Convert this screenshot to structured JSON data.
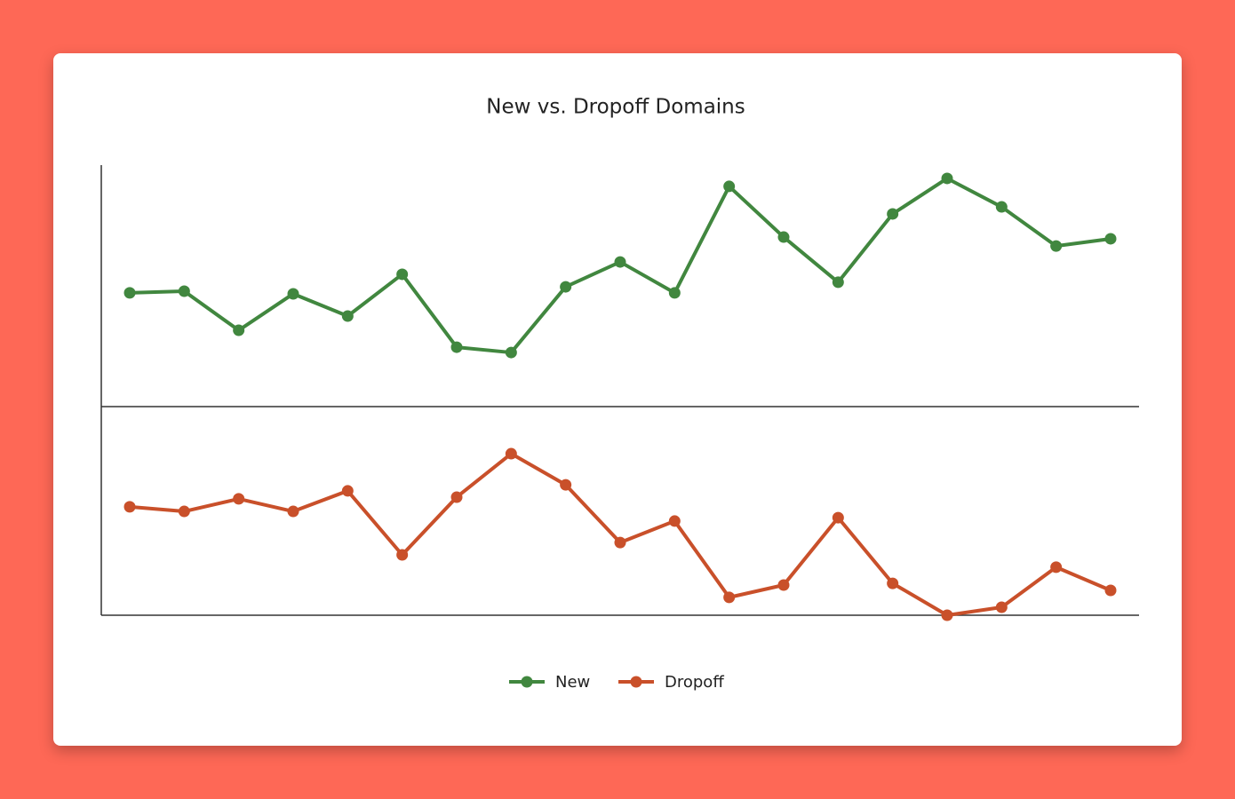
{
  "chart_data": {
    "type": "line",
    "title": "New vs. Dropoff Domains",
    "categories": [
      null,
      null,
      null,
      null,
      null,
      null,
      null,
      null,
      null,
      null,
      null,
      null,
      null,
      null,
      null,
      null,
      null,
      null,
      null
    ],
    "series": [
      {
        "name": "New",
        "color": "#41873f",
        "values": [
          47.1,
          47.8,
          31.6,
          46.7,
          37.5,
          54.8,
          24.6,
          22.4,
          49.6,
          59.9,
          47.1,
          91.2,
          70.2,
          51.5,
          79.8,
          94.5,
          82.7,
          66.5,
          69.5
        ]
      },
      {
        "name": "Dropoff",
        "color": "#c9502a",
        "values": [
          -41.5,
          -43.4,
          -38.2,
          -43.4,
          -34.9,
          -61.4,
          -37.5,
          -19.5,
          -32.4,
          -56.3,
          -47.4,
          -79.0,
          -73.9,
          -46.0,
          -73.2,
          -86.4,
          -83.1,
          -66.5,
          -76.1
        ]
      }
    ],
    "ylim": [
      -86.4,
      100
    ]
  }
}
